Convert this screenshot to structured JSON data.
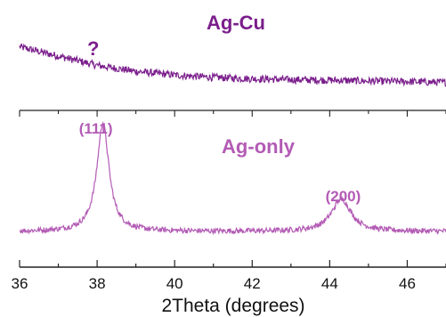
{
  "chart_data": {
    "type": "line",
    "xlabel": "2Theta (degrees)",
    "xlim": [
      36,
      47
    ],
    "x_ticks": [
      36,
      38,
      40,
      42,
      44,
      46
    ],
    "x_tick_labels": [
      "36",
      "38",
      "40",
      "42",
      "44",
      "46"
    ],
    "grid": false,
    "y_axis_shown": false,
    "stacked_offset_panels": true,
    "series": [
      {
        "name": "Ag-Cu",
        "color": "#7b1f8c",
        "trace": {
          "x": [
            36,
            37,
            38,
            39,
            40,
            41,
            42,
            43,
            44,
            45,
            46,
            47
          ],
          "y": [
            0.95,
            0.75,
            0.55,
            0.42,
            0.34,
            0.29,
            0.26,
            0.24,
            0.23,
            0.21,
            0.2,
            0.18
          ]
        },
        "noise_level": 0.08,
        "annotations": [
          {
            "text": "?",
            "x": 37.9
          }
        ]
      },
      {
        "name": "Ag-only",
        "color": "#b35bb5",
        "baseline": 0.18,
        "peaks": [
          {
            "label": "(111)",
            "center": 38.15,
            "height": 1.0,
            "width": 0.28
          },
          {
            "label": "(200)",
            "center": 44.3,
            "height": 0.3,
            "width": 0.45
          }
        ],
        "noise_level": 0.025
      }
    ]
  }
}
